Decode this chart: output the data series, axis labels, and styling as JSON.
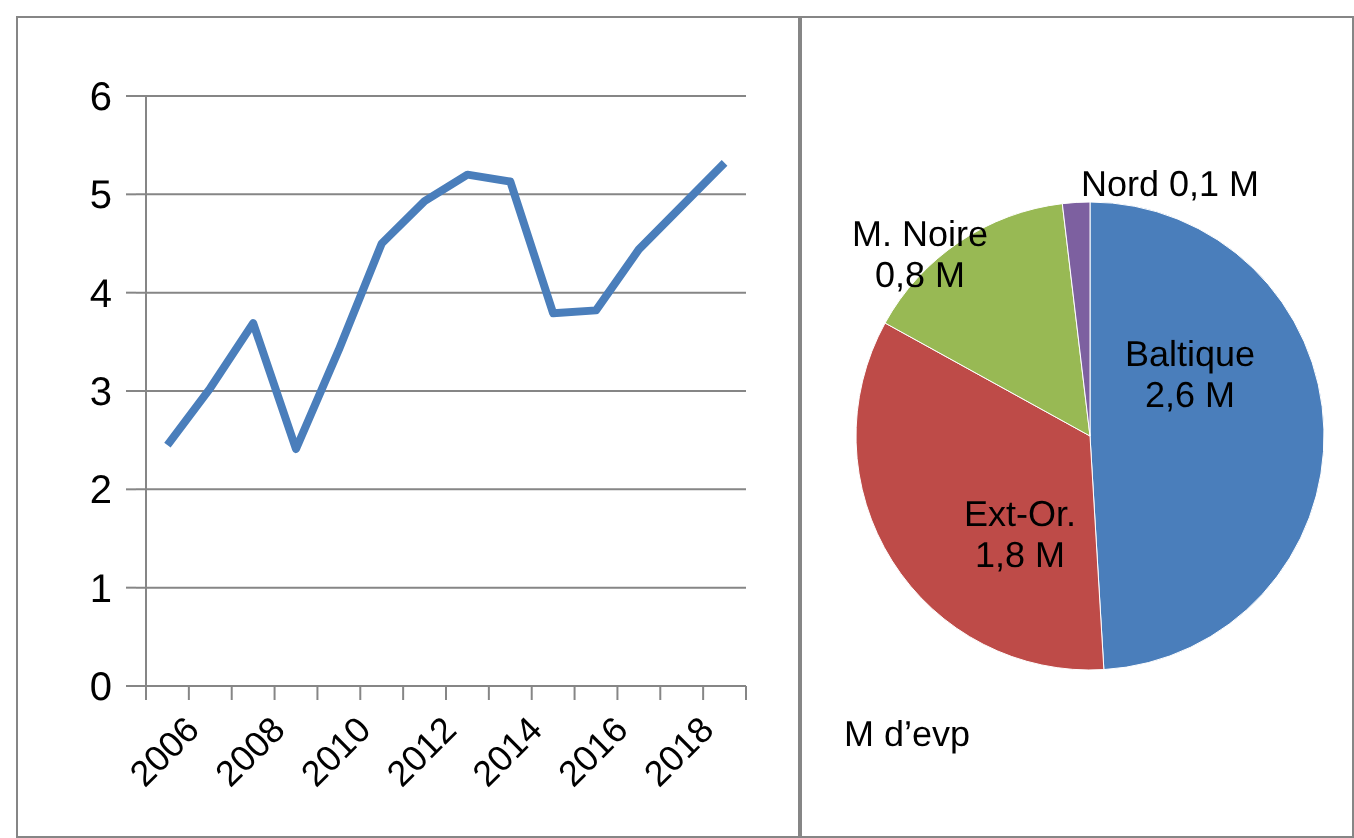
{
  "chart_data": [
    {
      "type": "line",
      "categories": [
        "2006",
        null,
        "2008",
        null,
        "2010",
        null,
        "2012",
        null,
        "2014",
        null,
        "2016",
        null,
        "2018",
        null
      ],
      "series": [
        {
          "color": "#4a7ebb",
          "values": [
            2.45,
            3.03,
            3.69,
            2.41,
            3.42,
            4.5,
            4.93,
            5.2,
            5.13,
            3.79,
            3.82,
            4.44,
            4.88,
            5.32
          ]
        }
      ],
      "ylim": [
        0,
        6
      ],
      "yticks": [
        0,
        1,
        2,
        3,
        4,
        5,
        6
      ],
      "grid": "y",
      "marker": "none",
      "line_style": "solid"
    },
    {
      "type": "pie",
      "categories": [
        "Baltique",
        "Ext-Or.",
        "M. Noire",
        "Nord"
      ],
      "values": [
        2.6,
        1.8,
        0.8,
        0.1
      ],
      "colors": [
        "#4a7ebb",
        "#be4b48",
        "#98b954",
        "#7d60a0"
      ],
      "value_labels": [
        "2,6 M",
        "1,8 M",
        "0,8 M",
        "0,1 M"
      ],
      "annotations": [
        "M d’evp"
      ],
      "legend": false
    }
  ]
}
